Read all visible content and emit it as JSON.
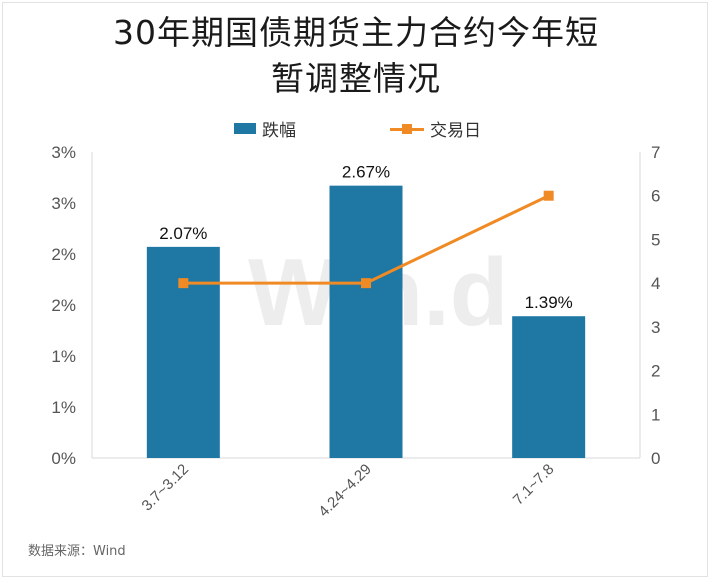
{
  "title_line1": "30年期国债期货主力合约今年短",
  "title_line2": "暂调整情况",
  "legend": {
    "bar_label": "跌幅",
    "line_label": "交易日"
  },
  "source": "数据来源：Wind",
  "watermark": "Win.d",
  "colors": {
    "bar": "#1f77a4",
    "line": "#f08a24",
    "grid": "#e6e6e6"
  },
  "chart_data": {
    "type": "bar",
    "title": "30年期国债期货主力合约今年短暂调整情况",
    "categories": [
      "3.7~3.12",
      "4.24~4.29",
      "7.1~7.8"
    ],
    "series": [
      {
        "name": "跌幅",
        "type": "bar",
        "axis": "left",
        "values": [
          2.07,
          2.67,
          1.39
        ],
        "data_labels": [
          "2.07%",
          "2.67%",
          "1.39%"
        ]
      },
      {
        "name": "交易日",
        "type": "line",
        "axis": "right",
        "values": [
          4,
          4,
          6
        ]
      }
    ],
    "left_axis": {
      "ylim": [
        0,
        3
      ],
      "tick_labels": [
        "0%",
        "1%",
        "1%",
        "2%",
        "2%",
        "3%",
        "3%"
      ]
    },
    "right_axis": {
      "ylim": [
        0,
        7
      ],
      "tick_labels": [
        "0",
        "1",
        "2",
        "3",
        "4",
        "5",
        "6",
        "7"
      ]
    },
    "legend_position": "top",
    "grid": false
  }
}
